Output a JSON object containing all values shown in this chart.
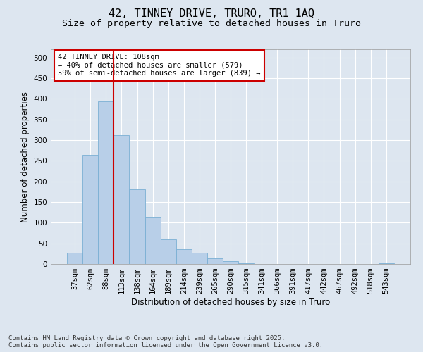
{
  "title_line1": "42, TINNEY DRIVE, TRURO, TR1 1AQ",
  "title_line2": "Size of property relative to detached houses in Truro",
  "xlabel": "Distribution of detached houses by size in Truro",
  "ylabel": "Number of detached properties",
  "bar_color": "#b8cfe8",
  "bar_edge_color": "#7aafd4",
  "background_color": "#dde6f0",
  "categories": [
    "37sqm",
    "62sqm",
    "88sqm",
    "113sqm",
    "138sqm",
    "164sqm",
    "189sqm",
    "214sqm",
    "239sqm",
    "265sqm",
    "290sqm",
    "315sqm",
    "341sqm",
    "366sqm",
    "391sqm",
    "417sqm",
    "442sqm",
    "467sqm",
    "492sqm",
    "518sqm",
    "543sqm"
  ],
  "values": [
    28,
    265,
    393,
    312,
    181,
    115,
    60,
    35,
    27,
    14,
    7,
    1,
    0,
    0,
    0,
    0,
    0,
    0,
    0,
    0,
    1
  ],
  "ylim": [
    0,
    520
  ],
  "yticks": [
    0,
    50,
    100,
    150,
    200,
    250,
    300,
    350,
    400,
    450,
    500
  ],
  "vline_x_index": 2,
  "vline_color": "#cc0000",
  "annotation_text": "42 TINNEY DRIVE: 108sqm\n← 40% of detached houses are smaller (579)\n59% of semi-detached houses are larger (839) →",
  "footer_text": "Contains HM Land Registry data © Crown copyright and database right 2025.\nContains public sector information licensed under the Open Government Licence v3.0.",
  "grid_color": "#ffffff",
  "title_fontsize": 11,
  "subtitle_fontsize": 9.5,
  "axis_label_fontsize": 8.5,
  "tick_fontsize": 7.5,
  "annotation_fontsize": 7.5,
  "footer_fontsize": 6.5
}
